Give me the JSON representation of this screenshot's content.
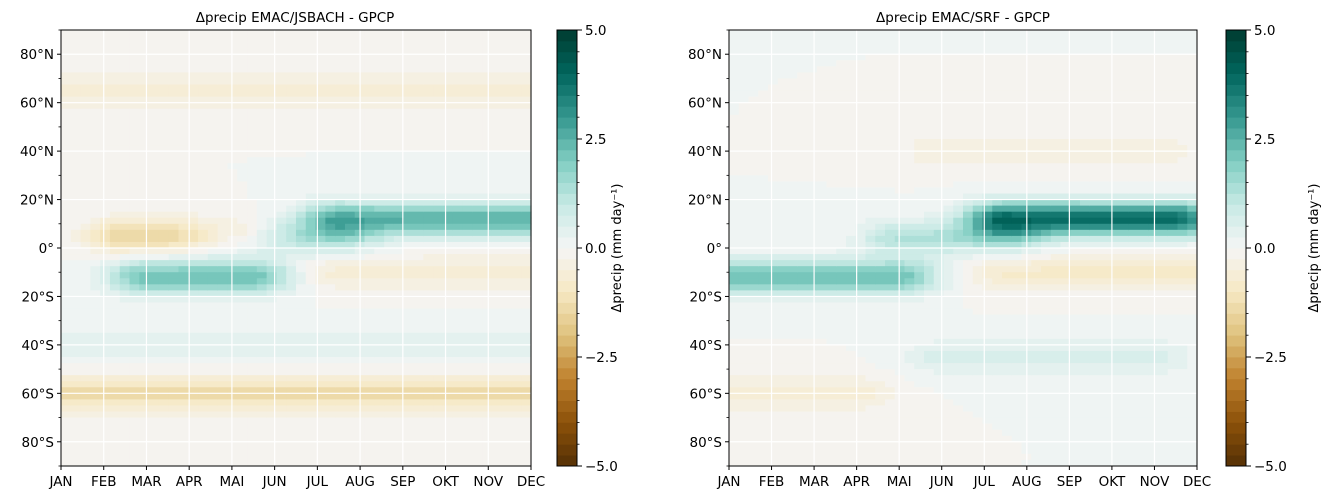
{
  "chart_data": [
    {
      "type": "heatmap",
      "title": "Δprecip EMAC/JSBACH - GPCP",
      "x_categories": [
        "JAN",
        "FEB",
        "MAR",
        "APR",
        "MAI",
        "JUN",
        "JUL",
        "AUG",
        "SEP",
        "OKT",
        "NOV",
        "DEC"
      ],
      "y_ticks": [
        "80°N",
        "60°N",
        "40°N",
        "20°N",
        "0°",
        "20°S",
        "40°S",
        "60°S",
        "80°S"
      ],
      "y_tick_values": [
        80,
        60,
        40,
        20,
        0,
        -20,
        -40,
        -60,
        -80
      ],
      "ylim": [
        -90,
        90
      ],
      "grid": true,
      "colorbar": {
        "label": "Δprecip (mm day⁻¹)",
        "ticks": [
          "5.0",
          "2.5",
          "0.0",
          "−2.5",
          "−5.0"
        ],
        "tick_values": [
          5.0,
          2.5,
          0.0,
          -2.5,
          -5.0
        ],
        "range": [
          -5.0,
          5.0
        ],
        "levels": 40,
        "colormap": "BrBG",
        "color_low": "#543005",
        "color_mid": "#f5f5f5",
        "color_high": "#003c30"
      },
      "features": [
        {
          "lat": 12,
          "month_start": 6.5,
          "month_end": 11.0,
          "value": 2.5
        },
        {
          "lat": -12,
          "month_start": 2.0,
          "month_end": 4.5,
          "value": 2.2
        },
        {
          "lat": 4,
          "month_start": 4.0,
          "month_end": 6.5,
          "value": 1.2
        },
        {
          "lat": 5,
          "month_start": 1.5,
          "month_end": 4.0,
          "value": -1.5
        },
        {
          "lat": -60,
          "month_start": 0.0,
          "month_end": 11.0,
          "value": -1.3
        },
        {
          "lat": 65,
          "month_start": 0.0,
          "month_end": 11.0,
          "value": -0.6
        },
        {
          "lat": -10,
          "month_start": 6.5,
          "month_end": 11.0,
          "value": -0.6
        },
        {
          "lat": -40,
          "month_start": 0.0,
          "month_end": 11.0,
          "value": 0.4
        }
      ]
    },
    {
      "type": "heatmap",
      "title": "Δprecip EMAC/SRF - GPCP",
      "x_categories": [
        "JAN",
        "FEB",
        "MAR",
        "APR",
        "MAI",
        "JUN",
        "JUL",
        "AUG",
        "SEP",
        "OKT",
        "NOV",
        "DEC"
      ],
      "y_ticks": [
        "80°N",
        "60°N",
        "40°N",
        "20°N",
        "0°",
        "20°S",
        "40°S",
        "60°S",
        "80°S"
      ],
      "y_tick_values": [
        80,
        60,
        40,
        20,
        0,
        -20,
        -40,
        -60,
        -80
      ],
      "ylim": [
        -90,
        90
      ],
      "grid": true,
      "colorbar": {
        "label": "Δprecip (mm day⁻¹)",
        "ticks": [
          "5.0",
          "2.5",
          "0.0",
          "−2.5",
          "−5.0"
        ],
        "tick_values": [
          5.0,
          2.5,
          0.0,
          -2.5,
          -5.0
        ],
        "range": [
          -5.0,
          5.0
        ],
        "levels": 40,
        "colormap": "BrBG",
        "color_low": "#543005",
        "color_mid": "#f5f5f5",
        "color_high": "#003c30"
      },
      "features": [
        {
          "lat": 12,
          "month_start": 6.5,
          "month_end": 10.5,
          "value": 3.8
        },
        {
          "lat": -12,
          "month_start": 0.0,
          "month_end": 4.0,
          "value": 2.2
        },
        {
          "lat": 4,
          "month_start": 4.0,
          "month_end": 6.5,
          "value": 1.3
        },
        {
          "lat": -10,
          "month_start": 6.5,
          "month_end": 11.0,
          "value": -0.8
        },
        {
          "lat": 40,
          "month_start": 5.0,
          "month_end": 10.0,
          "value": -0.5
        },
        {
          "lat": -45,
          "month_start": 5.0,
          "month_end": 10.0,
          "value": 0.6
        },
        {
          "lat": -60,
          "month_start": 0.0,
          "month_end": 3.0,
          "value": -0.6
        }
      ]
    }
  ]
}
